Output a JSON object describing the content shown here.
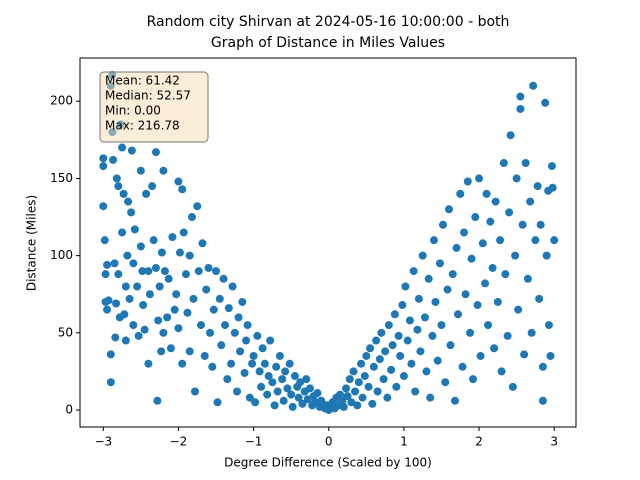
{
  "chart_data": {
    "type": "scatter",
    "title": [
      "Random city Shirvan at 2024-05-16 10:00:00  - both",
      "Graph of Distance in Miles Values"
    ],
    "xlabel": "Degree Difference (Scaled by 100)",
    "ylabel": "Distance (Miles)",
    "annotation": [
      "Mean: 61.42",
      "Median: 52.57",
      "Min: 0.00",
      "Max: 216.78"
    ],
    "color": "#1f77b4",
    "xlim": [
      -3.31,
      3.29
    ],
    "ylim": [
      -11,
      228
    ],
    "xticks": [
      {
        "value": -3,
        "label": "−3"
      },
      {
        "value": -2,
        "label": "−2"
      },
      {
        "value": -1,
        "label": "−1"
      },
      0,
      1,
      2,
      3
    ],
    "yticks": [
      0,
      50,
      100,
      150,
      200
    ],
    "x": [
      -3.0,
      -3.0,
      -3.0,
      -2.98,
      -2.97,
      -2.97,
      -2.95,
      -2.95,
      -2.93,
      -2.9,
      -2.9,
      -2.9,
      -2.88,
      -2.88,
      -2.87,
      -2.85,
      -2.84,
      -2.83,
      -2.82,
      -2.8,
      -2.8,
      -2.78,
      -2.77,
      -2.75,
      -2.75,
      -2.73,
      -2.72,
      -2.7,
      -2.7,
      -2.68,
      -2.67,
      -2.65,
      -2.63,
      -2.62,
      -2.6,
      -2.6,
      -2.58,
      -2.55,
      -2.53,
      -2.5,
      -2.5,
      -2.48,
      -2.47,
      -2.45,
      -2.43,
      -2.4,
      -2.4,
      -2.38,
      -2.35,
      -2.33,
      -2.3,
      -2.3,
      -2.28,
      -2.27,
      -2.25,
      -2.23,
      -2.22,
      -2.2,
      -2.2,
      -2.18,
      -2.15,
      -2.13,
      -2.1,
      -2.08,
      -2.05,
      -2.03,
      -2.0,
      -2.0,
      -1.98,
      -1.95,
      -1.95,
      -1.93,
      -1.9,
      -1.88,
      -1.85,
      -1.85,
      -1.82,
      -1.8,
      -1.78,
      -1.75,
      -1.73,
      -1.7,
      -1.68,
      -1.65,
      -1.63,
      -1.6,
      -1.58,
      -1.55,
      -1.53,
      -1.5,
      -1.48,
      -1.45,
      -1.43,
      -1.4,
      -1.38,
      -1.35,
      -1.33,
      -1.3,
      -1.28,
      -1.25,
      -1.22,
      -1.2,
      -1.18,
      -1.15,
      -1.12,
      -1.1,
      -1.08,
      -1.05,
      -1.02,
      -1.0,
      -0.98,
      -0.95,
      -0.92,
      -0.9,
      -0.88,
      -0.85,
      -0.82,
      -0.8,
      -0.78,
      -0.75,
      -0.72,
      -0.7,
      -0.68,
      -0.65,
      -0.62,
      -0.6,
      -0.58,
      -0.55,
      -0.52,
      -0.5,
      -0.48,
      -0.45,
      -0.42,
      -0.4,
      -0.38,
      -0.35,
      -0.32,
      -0.3,
      -0.28,
      -0.25,
      -0.22,
      -0.2,
      -0.18,
      -0.15,
      -0.12,
      -0.1,
      -0.08,
      -0.05,
      -0.02,
      0.0,
      0.03,
      0.05,
      0.08,
      0.1,
      0.13,
      0.15,
      0.18,
      0.2,
      0.23,
      0.25,
      0.28,
      0.3,
      0.33,
      0.35,
      0.38,
      0.4,
      0.43,
      0.45,
      0.48,
      0.5,
      0.53,
      0.55,
      0.58,
      0.6,
      0.63,
      0.65,
      0.68,
      0.7,
      0.73,
      0.75,
      0.78,
      0.8,
      0.83,
      0.85,
      0.88,
      0.9,
      0.93,
      0.95,
      0.98,
      1.0,
      1.02,
      1.05,
      1.08,
      1.1,
      1.13,
      1.15,
      1.18,
      1.2,
      1.22,
      1.25,
      1.28,
      1.3,
      1.33,
      1.35,
      1.38,
      1.4,
      1.42,
      1.45,
      1.48,
      1.5,
      1.52,
      1.55,
      1.58,
      1.6,
      1.62,
      1.65,
      1.68,
      1.7,
      1.72,
      1.75,
      1.78,
      1.8,
      1.82,
      1.85,
      1.88,
      1.9,
      1.92,
      1.95,
      1.98,
      2.0,
      2.02,
      2.05,
      2.08,
      2.1,
      2.12,
      2.15,
      2.18,
      2.2,
      2.22,
      2.25,
      2.28,
      2.3,
      2.33,
      2.35,
      2.38,
      2.4,
      2.42,
      2.45,
      2.48,
      2.5,
      2.52,
      2.55,
      2.55,
      2.58,
      2.6,
      2.62,
      2.65,
      2.68,
      2.7,
      2.72,
      2.75,
      2.78,
      2.8,
      2.82,
      2.85,
      2.85,
      2.88,
      2.9,
      2.92,
      2.95,
      2.97,
      3.0,
      2.98,
      2.93
    ],
    "values": [
      163,
      158,
      132,
      110,
      88,
      70,
      94,
      65,
      71,
      36,
      18,
      210,
      217,
      180,
      162,
      95,
      47,
      69,
      150,
      145,
      88,
      60,
      185,
      170,
      115,
      140,
      62,
      80,
      45,
      100,
      135,
      72,
      128,
      168,
      55,
      95,
      117,
      80,
      48,
      155,
      106,
      90,
      68,
      52,
      140,
      90,
      30,
      75,
      145,
      110,
      167,
      92,
      6,
      58,
      80,
      38,
      102,
      155,
      50,
      90,
      60,
      85,
      40,
      112,
      65,
      75,
      148,
      53,
      102,
      143,
      30,
      115,
      88,
      63,
      38,
      100,
      125,
      72,
      12,
      132,
      90,
      55,
      108,
      35,
      78,
      92,
      50,
      28,
      65,
      90,
      5,
      72,
      42,
      85,
      55,
      20,
      66,
      30,
      80,
      50,
      12,
      60,
      38,
      70,
      24,
      45,
      55,
      8,
      30,
      35,
      5,
      48,
      25,
      15,
      40,
      30,
      10,
      22,
      45,
      18,
      3,
      28,
      12,
      35,
      20,
      6,
      25,
      14,
      30,
      10,
      2,
      22,
      15,
      8,
      18,
      4,
      12,
      20,
      7,
      14,
      3,
      9,
      5,
      11,
      2,
      6,
      4,
      1,
      3,
      0,
      2,
      5,
      1,
      8,
      3,
      10,
      6,
      2,
      14,
      9,
      20,
      5,
      25,
      12,
      3,
      18,
      30,
      8,
      22,
      35,
      15,
      40,
      4,
      28,
      45,
      12,
      33,
      50,
      20,
      38,
      8,
      55,
      26,
      42,
      62,
      15,
      48,
      35,
      68,
      22,
      80,
      45,
      58,
      30,
      90,
      12,
      52,
      72,
      38,
      100,
      60,
      25,
      85,
      8,
      48,
      110,
      70,
      32,
      95,
      55,
      120,
      18,
      78,
      130,
      42,
      88,
      6,
      105,
      62,
      140,
      28,
      115,
      75,
      148,
      50,
      98,
      20,
      125,
      68,
      150,
      35,
      108,
      82,
      140,
      55,
      122,
      92,
      40,
      135,
      70,
      110,
      25,
      160,
      88,
      48,
      128,
      178,
      15,
      100,
      150,
      65,
      195,
      203,
      120,
      36,
      160,
      85,
      135,
      50,
      210,
      110,
      145,
      72,
      120,
      28,
      6,
      199,
      100,
      142,
      35,
      158,
      110,
      144,
      55
    ]
  }
}
